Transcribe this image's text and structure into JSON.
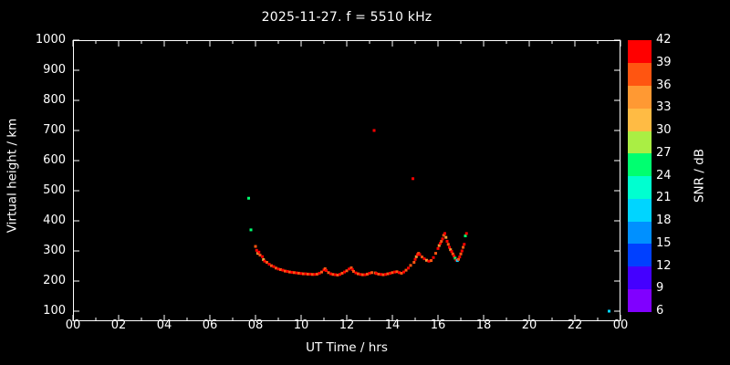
{
  "chart_data": {
    "type": "scatter",
    "title": "2025-11-27. f = 5510 kHz",
    "xlabel": "UT Time / hrs",
    "ylabel": "Virtual height / km",
    "colorbar_label": "SNR / dB",
    "xlim": [
      0,
      24
    ],
    "ylim": [
      100,
      1000
    ],
    "grid": false,
    "background": "#000000",
    "axis_color": "#ffffff",
    "xticks": [
      "00",
      "02",
      "04",
      "06",
      "08",
      "10",
      "12",
      "14",
      "16",
      "18",
      "20",
      "22",
      "00"
    ],
    "yticks": [
      100,
      200,
      300,
      400,
      500,
      600,
      700,
      800,
      900,
      1000
    ],
    "colorbar_ticks": [
      6,
      9,
      12,
      15,
      18,
      21,
      24,
      27,
      30,
      33,
      36,
      39,
      42
    ],
    "colorbar_colors": [
      "#8000ff",
      "#4400ff",
      "#0040ff",
      "#0090ff",
      "#00d5ff",
      "#00ffd0",
      "#00ff70",
      "#aaee44",
      "#ffbb44",
      "#ff9933",
      "#ff5511",
      "#ff0000"
    ],
    "points_format": [
      "ut_hours",
      "virtual_height_km",
      "snr_db"
    ],
    "points": [
      [
        7.7,
        475,
        25
      ],
      [
        7.8,
        370,
        25
      ],
      [
        8.0,
        315,
        37
      ],
      [
        8.05,
        302,
        40
      ],
      [
        8.1,
        292,
        34
      ],
      [
        8.15,
        296,
        40
      ],
      [
        8.2,
        286,
        37
      ],
      [
        8.3,
        281,
        40
      ],
      [
        8.35,
        271,
        31
      ],
      [
        8.4,
        266,
        40
      ],
      [
        8.5,
        262,
        37
      ],
      [
        8.6,
        256,
        40
      ],
      [
        8.7,
        251,
        37
      ],
      [
        8.8,
        248,
        40
      ],
      [
        8.9,
        243,
        37
      ],
      [
        9.0,
        240,
        40
      ],
      [
        9.1,
        238,
        37
      ],
      [
        9.2,
        236,
        40
      ],
      [
        9.3,
        233,
        37
      ],
      [
        9.4,
        232,
        40
      ],
      [
        9.5,
        230,
        37
      ],
      [
        9.6,
        229,
        40
      ],
      [
        9.7,
        228,
        37
      ],
      [
        9.8,
        227,
        40
      ],
      [
        9.9,
        226,
        37
      ],
      [
        10.0,
        225,
        40
      ],
      [
        10.1,
        224,
        37
      ],
      [
        10.2,
        224,
        40
      ],
      [
        10.3,
        223,
        37
      ],
      [
        10.4,
        223,
        40
      ],
      [
        10.5,
        222,
        37
      ],
      [
        10.6,
        222,
        40
      ],
      [
        10.7,
        223,
        37
      ],
      [
        10.8,
        226,
        40
      ],
      [
        10.9,
        230,
        37
      ],
      [
        11.0,
        237,
        40
      ],
      [
        11.05,
        241,
        37
      ],
      [
        11.1,
        235,
        40
      ],
      [
        11.2,
        228,
        37
      ],
      [
        11.3,
        224,
        40
      ],
      [
        11.4,
        222,
        37
      ],
      [
        11.5,
        221,
        40
      ],
      [
        11.6,
        220,
        37
      ],
      [
        11.7,
        222,
        40
      ],
      [
        11.8,
        226,
        37
      ],
      [
        11.9,
        230,
        40
      ],
      [
        12.0,
        234,
        37
      ],
      [
        12.1,
        240,
        40
      ],
      [
        12.2,
        244,
        37
      ],
      [
        12.25,
        238,
        40
      ],
      [
        12.3,
        232,
        37
      ],
      [
        12.4,
        227,
        40
      ],
      [
        12.5,
        224,
        37
      ],
      [
        12.6,
        222,
        40
      ],
      [
        12.7,
        221,
        37
      ],
      [
        12.8,
        221,
        40
      ],
      [
        12.9,
        223,
        37
      ],
      [
        13.0,
        226,
        40
      ],
      [
        13.1,
        228,
        37
      ],
      [
        13.2,
        700,
        40
      ],
      [
        13.25,
        227,
        37
      ],
      [
        13.3,
        225,
        40
      ],
      [
        13.4,
        223,
        37
      ],
      [
        13.5,
        222,
        40
      ],
      [
        13.6,
        221,
        37
      ],
      [
        13.7,
        222,
        40
      ],
      [
        13.8,
        224,
        37
      ],
      [
        13.9,
        226,
        40
      ],
      [
        14.0,
        228,
        37
      ],
      [
        14.1,
        230,
        40
      ],
      [
        14.2,
        231,
        37
      ],
      [
        14.3,
        228,
        40
      ],
      [
        14.4,
        226,
        37
      ],
      [
        14.5,
        230,
        40
      ],
      [
        14.6,
        236,
        37
      ],
      [
        14.7,
        243,
        40
      ],
      [
        14.8,
        252,
        37
      ],
      [
        14.9,
        540,
        40
      ],
      [
        14.95,
        262,
        37
      ],
      [
        15.0,
        272,
        40
      ],
      [
        15.05,
        281,
        34
      ],
      [
        15.1,
        288,
        40
      ],
      [
        15.15,
        292,
        37
      ],
      [
        15.2,
        288,
        40
      ],
      [
        15.3,
        280,
        37
      ],
      [
        15.4,
        274,
        40
      ],
      [
        15.5,
        269,
        34
      ],
      [
        15.6,
        266,
        40
      ],
      [
        15.7,
        268,
        37
      ],
      [
        15.8,
        278,
        40
      ],
      [
        15.9,
        292,
        37
      ],
      [
        16.0,
        308,
        40
      ],
      [
        16.05,
        318,
        34
      ],
      [
        16.1,
        325,
        40
      ],
      [
        16.15,
        332,
        37
      ],
      [
        16.2,
        340,
        40
      ],
      [
        16.25,
        352,
        37
      ],
      [
        16.3,
        358,
        40
      ],
      [
        16.35,
        345,
        34
      ],
      [
        16.4,
        332,
        40
      ],
      [
        16.45,
        322,
        37
      ],
      [
        16.5,
        312,
        40
      ],
      [
        16.55,
        304,
        34
      ],
      [
        16.6,
        298,
        40
      ],
      [
        16.65,
        290,
        37
      ],
      [
        16.7,
        283,
        40
      ],
      [
        16.75,
        276,
        25
      ],
      [
        16.8,
        270,
        40
      ],
      [
        16.85,
        268,
        19
      ],
      [
        16.9,
        272,
        37
      ],
      [
        16.95,
        280,
        40
      ],
      [
        17.0,
        290,
        37
      ],
      [
        17.05,
        300,
        40
      ],
      [
        17.1,
        312,
        37
      ],
      [
        17.15,
        322,
        40
      ],
      [
        17.2,
        350,
        25
      ],
      [
        17.25,
        358,
        40
      ],
      [
        23.5,
        100,
        19
      ]
    ]
  }
}
